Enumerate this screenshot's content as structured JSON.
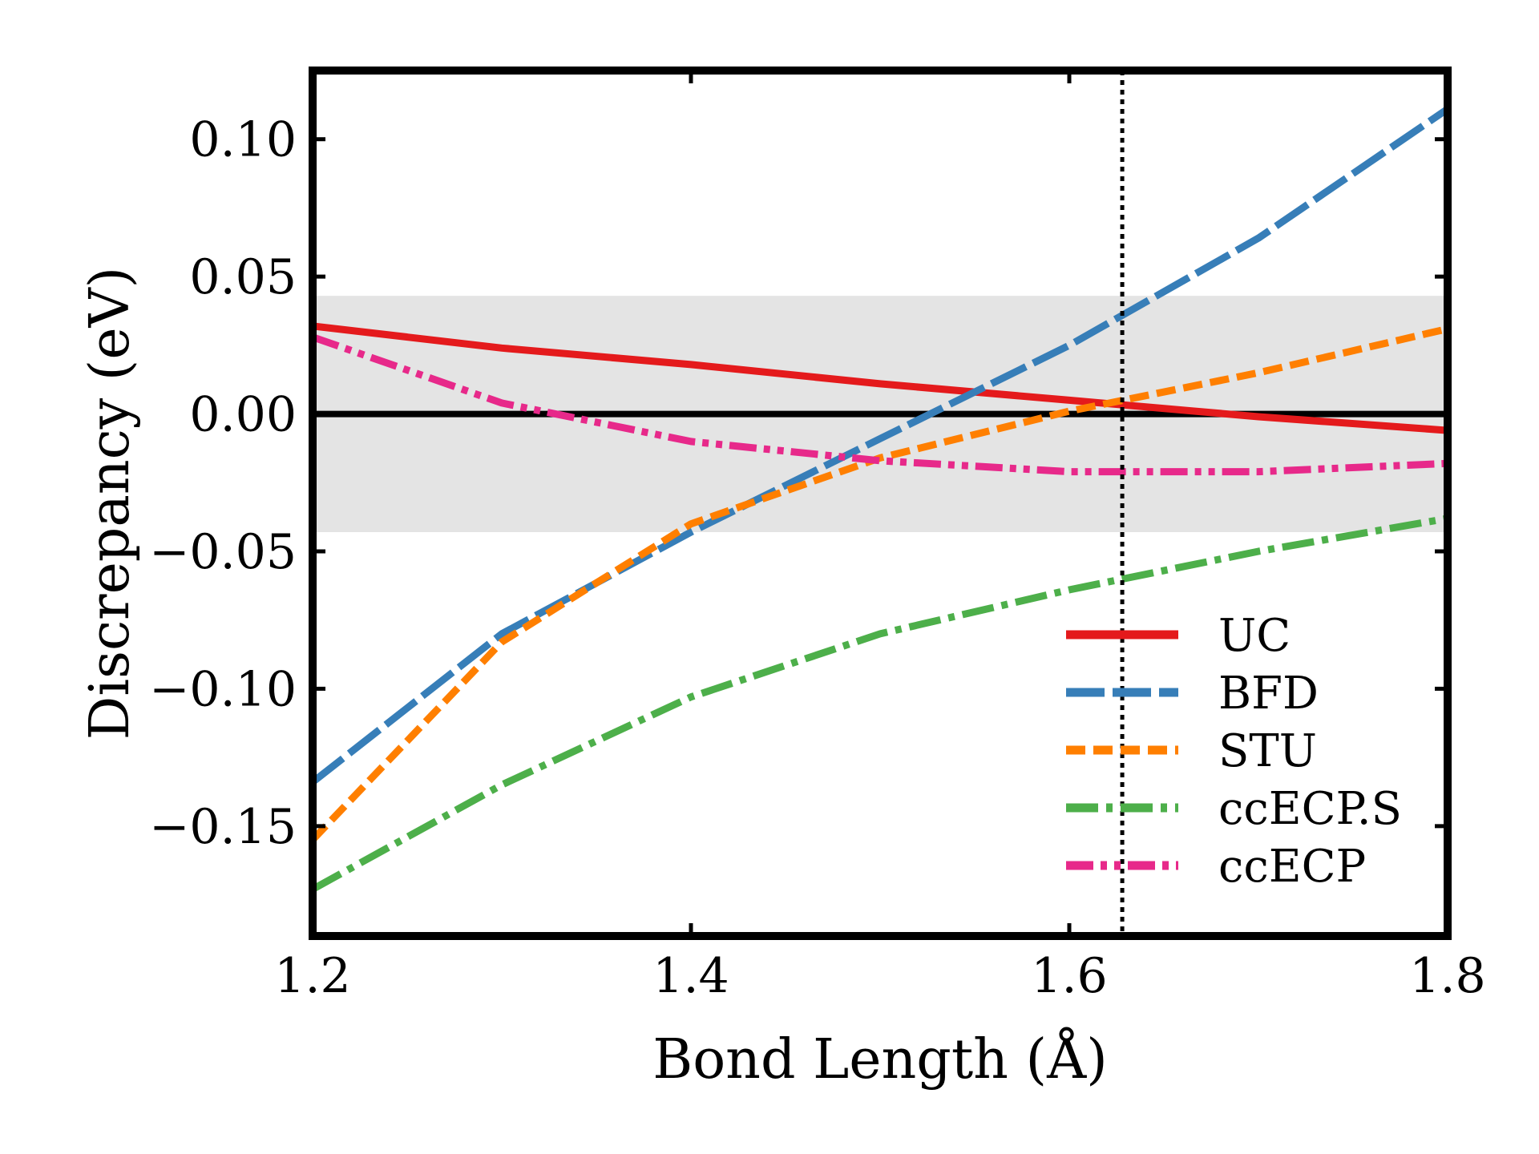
{
  "chart_data": {
    "type": "line",
    "title": "",
    "xlabel": "Bond Length (Å)",
    "ylabel": "Discrepancy (eV)",
    "xlim": [
      1.2,
      1.8
    ],
    "ylim": [
      -0.19,
      0.125
    ],
    "xticks": [
      1.2,
      1.4,
      1.6,
      1.8
    ],
    "xtick_labels": [
      "1.2",
      "1.4",
      "1.6",
      "1.8"
    ],
    "yticks": [
      -0.15,
      -0.1,
      -0.05,
      0.0,
      0.05,
      0.1
    ],
    "ytick_labels": [
      "−0.15",
      "−0.10",
      "−0.05",
      "0.00",
      "0.05",
      "0.10"
    ],
    "grid": false,
    "legend_position": "bottom-right",
    "chemical_accuracy_band": [
      -0.043,
      0.043
    ],
    "zero_line": 0.0,
    "reference_line_x": 1.628,
    "series": [
      {
        "name": "UC",
        "color": "#e41a1c",
        "dash": "solid",
        "x": [
          1.2,
          1.3,
          1.4,
          1.5,
          1.6,
          1.7,
          1.8
        ],
        "y": [
          0.032,
          0.024,
          0.018,
          0.011,
          0.005,
          -0.001,
          -0.006
        ]
      },
      {
        "name": "BFD",
        "color": "#377eb8",
        "dash": "dash",
        "x": [
          1.2,
          1.3,
          1.4,
          1.5,
          1.6,
          1.7,
          1.8
        ],
        "y": [
          -0.134,
          -0.08,
          -0.043,
          -0.009,
          0.025,
          0.064,
          0.111
        ]
      },
      {
        "name": "STU",
        "color": "#ff7f00",
        "dash": "shortdash",
        "x": [
          1.2,
          1.3,
          1.4,
          1.5,
          1.6,
          1.7,
          1.8
        ],
        "y": [
          -0.155,
          -0.083,
          -0.04,
          -0.016,
          0.001,
          0.015,
          0.031
        ]
      },
      {
        "name": "ccECP.S",
        "color": "#4daf4a",
        "dash": "dashdot",
        "x": [
          1.2,
          1.3,
          1.4,
          1.5,
          1.6,
          1.7,
          1.8
        ],
        "y": [
          -0.173,
          -0.135,
          -0.103,
          -0.08,
          -0.064,
          -0.05,
          -0.038
        ]
      },
      {
        "name": "ccECP",
        "color": "#e7298a",
        "dash": "dashdotdot",
        "x": [
          1.2,
          1.3,
          1.4,
          1.5,
          1.6,
          1.7,
          1.8
        ],
        "y": [
          0.028,
          0.004,
          -0.01,
          -0.017,
          -0.021,
          -0.021,
          -0.018
        ]
      }
    ]
  }
}
